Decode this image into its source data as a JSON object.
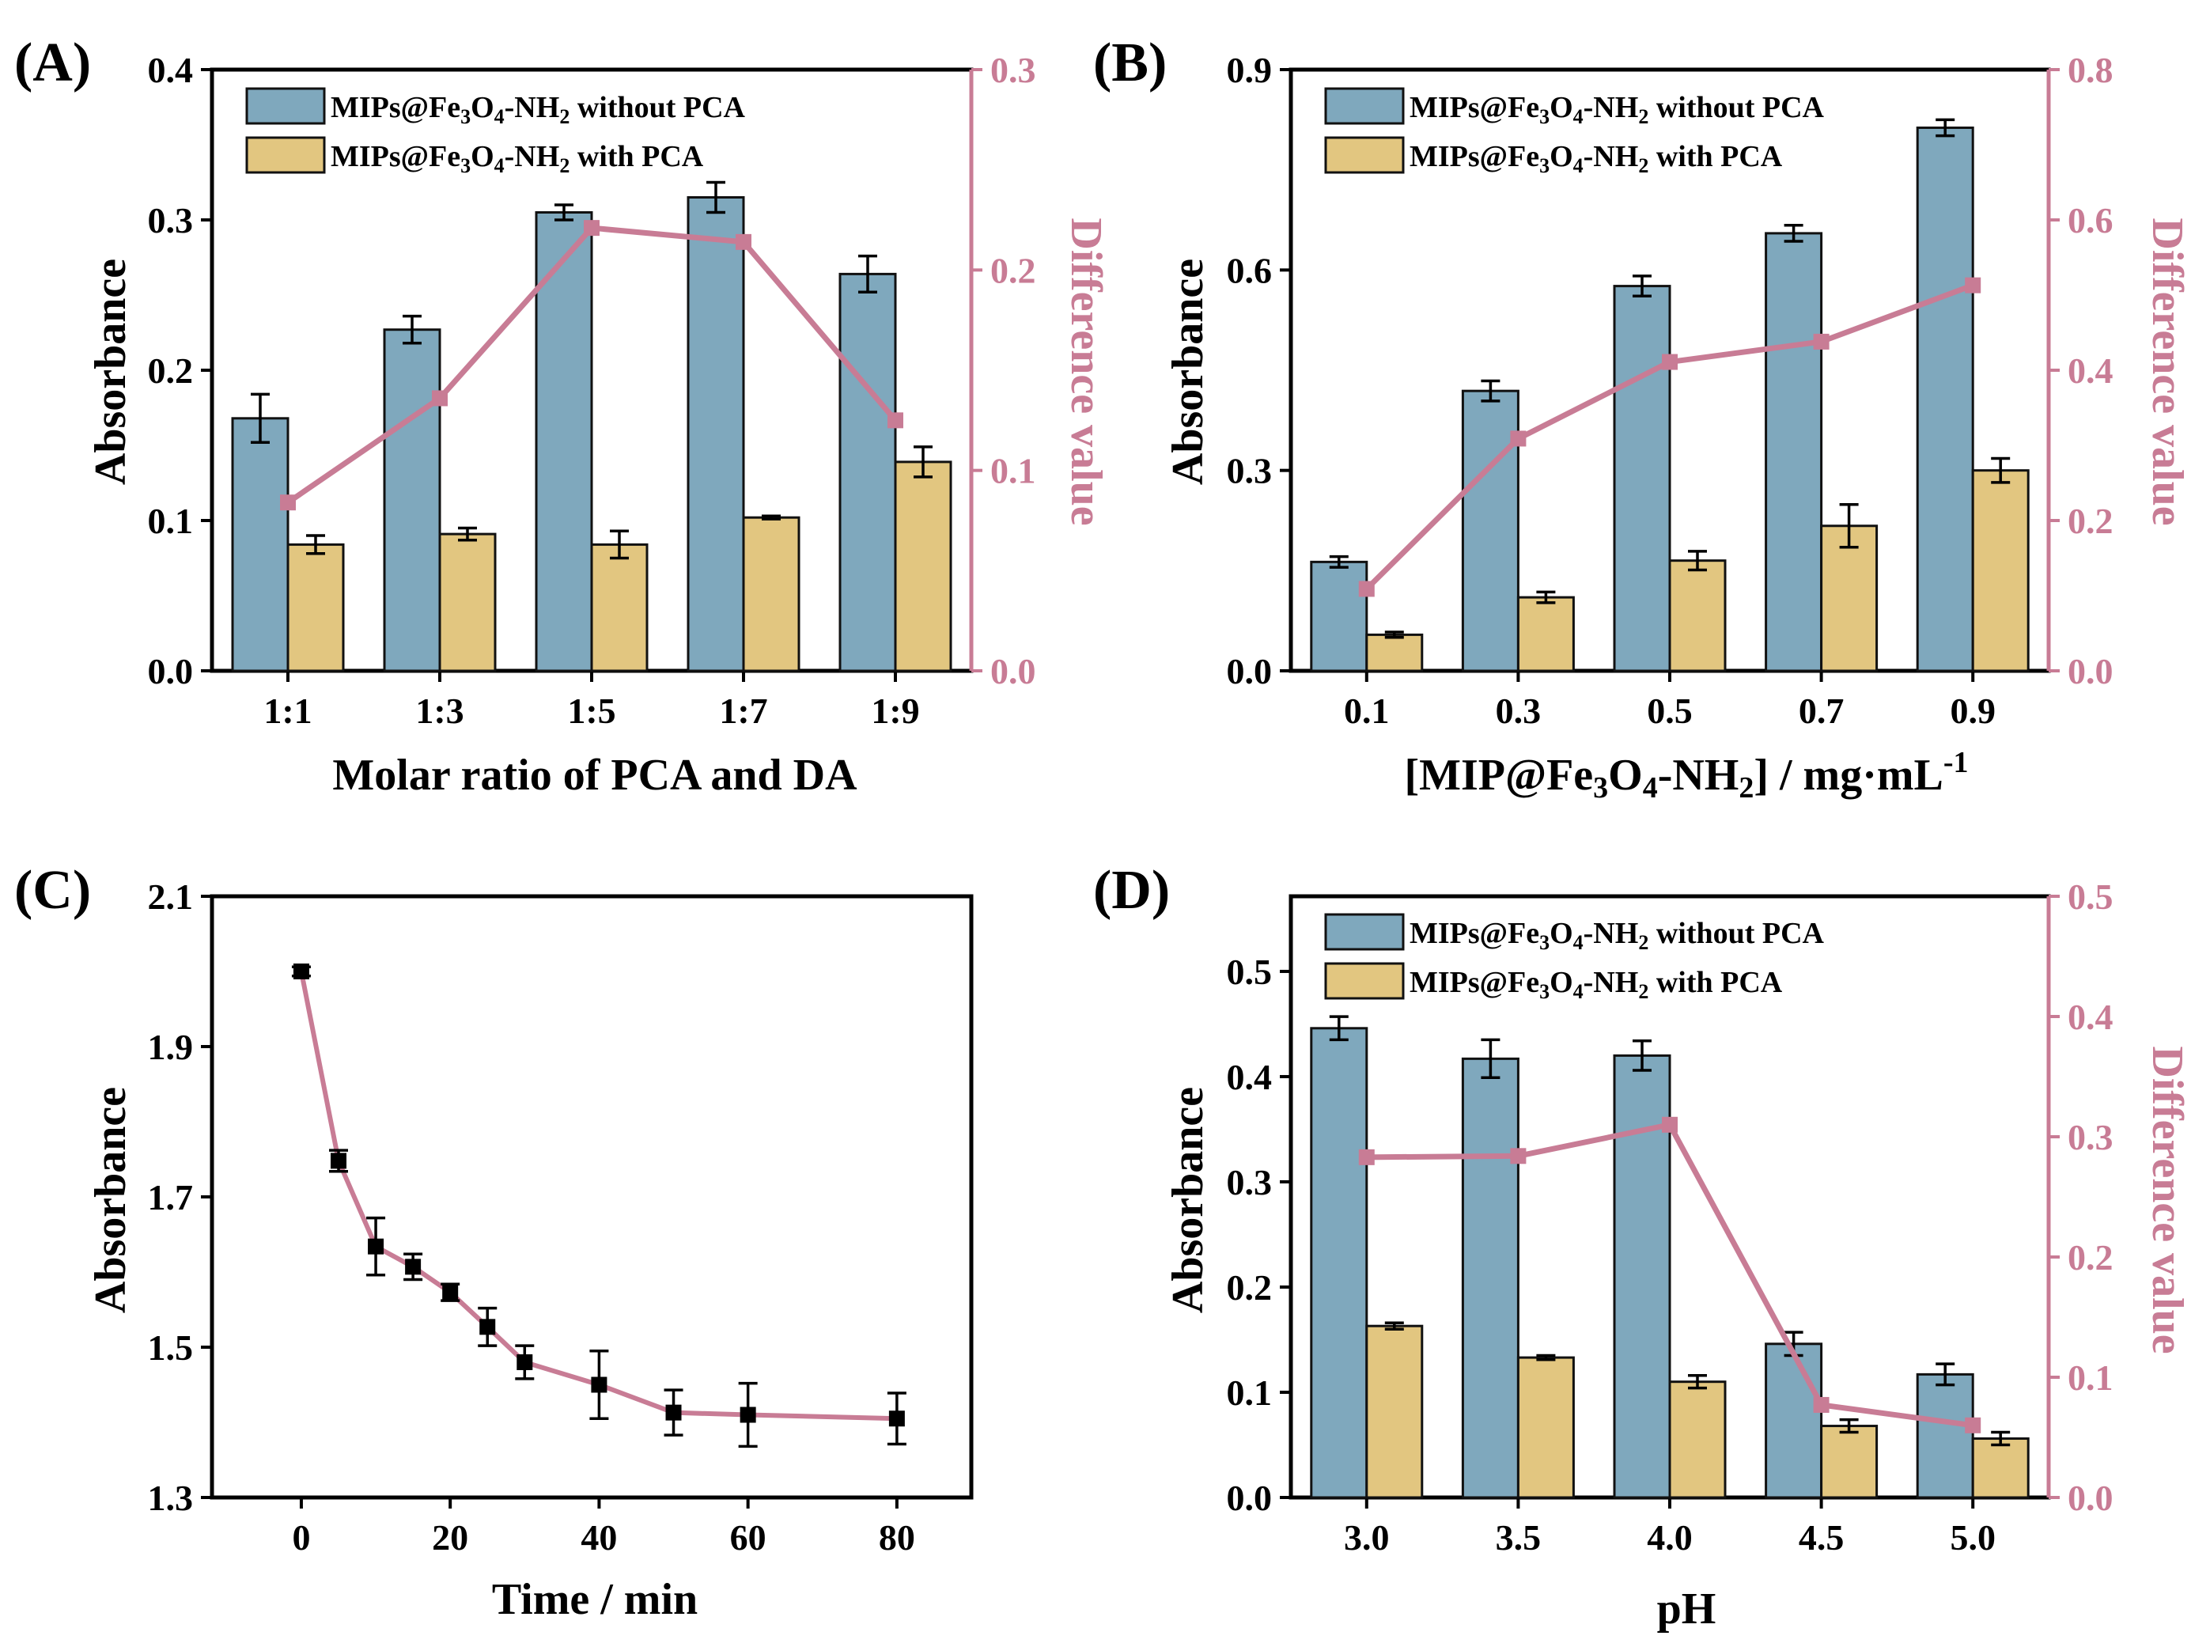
{
  "colors": {
    "without": "#7fa8bd",
    "with": "#e2c680",
    "difference": "#c87c95",
    "points": "#000000"
  },
  "legend": {
    "without_main": "MIPs@Fe",
    "without_s1": "3",
    "without_o": "O",
    "without_s2": "4",
    "without_nh": "-NH",
    "without_s3": "2",
    "without_tail": " without PCA",
    "with_tail": " with PCA"
  },
  "chart_data": [
    {
      "type": "bar",
      "panel_label": "(A)",
      "xlabel": "Molar ratio of PCA and DA",
      "ylabel": "Absorbance",
      "y2label": "Difference value",
      "categories": [
        "1:1",
        "1:3",
        "1:5",
        "1:7",
        "1:9"
      ],
      "ylim": [
        0,
        0.4
      ],
      "yticks": [
        "0.0",
        "0.1",
        "0.2",
        "0.3",
        "0.4"
      ],
      "y2lim": [
        0,
        0.3
      ],
      "y2ticks": [
        "0.0",
        "0.1",
        "0.2",
        "0.3"
      ],
      "series": [
        {
          "name": "MIPs@Fe3O4-NH2 without PCA",
          "values": [
            0.168,
            0.227,
            0.305,
            0.315,
            0.264
          ],
          "errors": [
            0.016,
            0.009,
            0.005,
            0.01,
            0.012
          ]
        },
        {
          "name": "MIPs@Fe3O4-NH2 with PCA",
          "values": [
            0.084,
            0.091,
            0.084,
            0.102,
            0.139
          ],
          "errors": [
            0.006,
            0.004,
            0.009,
            0.001,
            0.01
          ]
        }
      ],
      "difference": {
        "name": "Difference value",
        "values": [
          0.084,
          0.136,
          0.221,
          0.214,
          0.125
        ]
      }
    },
    {
      "type": "bar",
      "panel_label": "(B)",
      "xlabel_main": "[MIP@Fe",
      "xlabel_s1": "3",
      "xlabel_o": "O",
      "xlabel_s2": "4",
      "xlabel_nh": "-NH",
      "xlabel_s3": "2",
      "xlabel_tail": "] / mg·mL",
      "xlabel_sup": "-1",
      "ylabel": "Absorbance",
      "y2label": "Difference value",
      "categories": [
        "0.1",
        "0.3",
        "0.5",
        "0.7",
        "0.9"
      ],
      "ylim": [
        0,
        0.9
      ],
      "yticks": [
        "0.0",
        "0.3",
        "0.6",
        "0.9"
      ],
      "y2lim": [
        0,
        0.8
      ],
      "y2ticks": [
        "0.0",
        "0.2",
        "0.4",
        "0.6",
        "0.8"
      ],
      "series": [
        {
          "name": "MIPs@Fe3O4-NH2 without PCA",
          "values": [
            0.163,
            0.419,
            0.576,
            0.655,
            0.813
          ],
          "errors": [
            0.008,
            0.015,
            0.015,
            0.012,
            0.012
          ]
        },
        {
          "name": "MIPs@Fe3O4-NH2 with PCA",
          "values": [
            0.054,
            0.11,
            0.165,
            0.217,
            0.3
          ],
          "errors": [
            0.004,
            0.008,
            0.014,
            0.032,
            0.018
          ]
        }
      ],
      "difference": {
        "name": "Difference value",
        "values": [
          0.109,
          0.309,
          0.411,
          0.438,
          0.513
        ]
      }
    },
    {
      "type": "line",
      "panel_label": "(C)",
      "xlabel": "Time / min",
      "ylabel": "Absorbance",
      "x": [
        0,
        5,
        10,
        15,
        20,
        25,
        30,
        40,
        50,
        60,
        80
      ],
      "y": [
        2.0,
        1.748,
        1.634,
        1.607,
        1.573,
        1.527,
        1.48,
        1.45,
        1.413,
        1.41,
        1.405
      ],
      "errors": [
        0.006,
        0.014,
        0.038,
        0.017,
        0.011,
        0.025,
        0.022,
        0.045,
        0.03,
        0.042,
        0.034
      ],
      "xlim": [
        -12,
        90
      ],
      "xticks": [
        "0",
        "20",
        "40",
        "60",
        "80"
      ],
      "ylim": [
        1.3,
        2.1
      ],
      "yticks": [
        "1.3",
        "1.5",
        "1.7",
        "1.9",
        "2.1"
      ]
    },
    {
      "type": "bar",
      "panel_label": "(D)",
      "xlabel": "pH",
      "ylabel": "Absorbance",
      "y2label": "Difference value",
      "categories": [
        "3.0",
        "3.5",
        "4.0",
        "4.5",
        "5.0"
      ],
      "ylim": [
        0,
        0.5714
      ],
      "yticks": [
        "0.0",
        "0.1",
        "0.2",
        "0.3",
        "0.4",
        "0.5"
      ],
      "y2lim": [
        0,
        0.5
      ],
      "y2ticks": [
        "0.0",
        "0.1",
        "0.2",
        "0.3",
        "0.4",
        "0.5"
      ],
      "series": [
        {
          "name": "MIPs@Fe3O4-NH2 without PCA",
          "values": [
            0.446,
            0.417,
            0.42,
            0.146,
            0.117
          ],
          "errors": [
            0.011,
            0.018,
            0.014,
            0.011,
            0.01
          ]
        },
        {
          "name": "MIPs@Fe3O4-NH2 with PCA",
          "values": [
            0.163,
            0.133,
            0.11,
            0.068,
            0.056
          ],
          "errors": [
            0.003,
            0.002,
            0.006,
            0.006,
            0.006
          ]
        }
      ],
      "difference": {
        "name": "Difference value",
        "values": [
          0.283,
          0.284,
          0.31,
          0.077,
          0.06
        ]
      }
    }
  ]
}
